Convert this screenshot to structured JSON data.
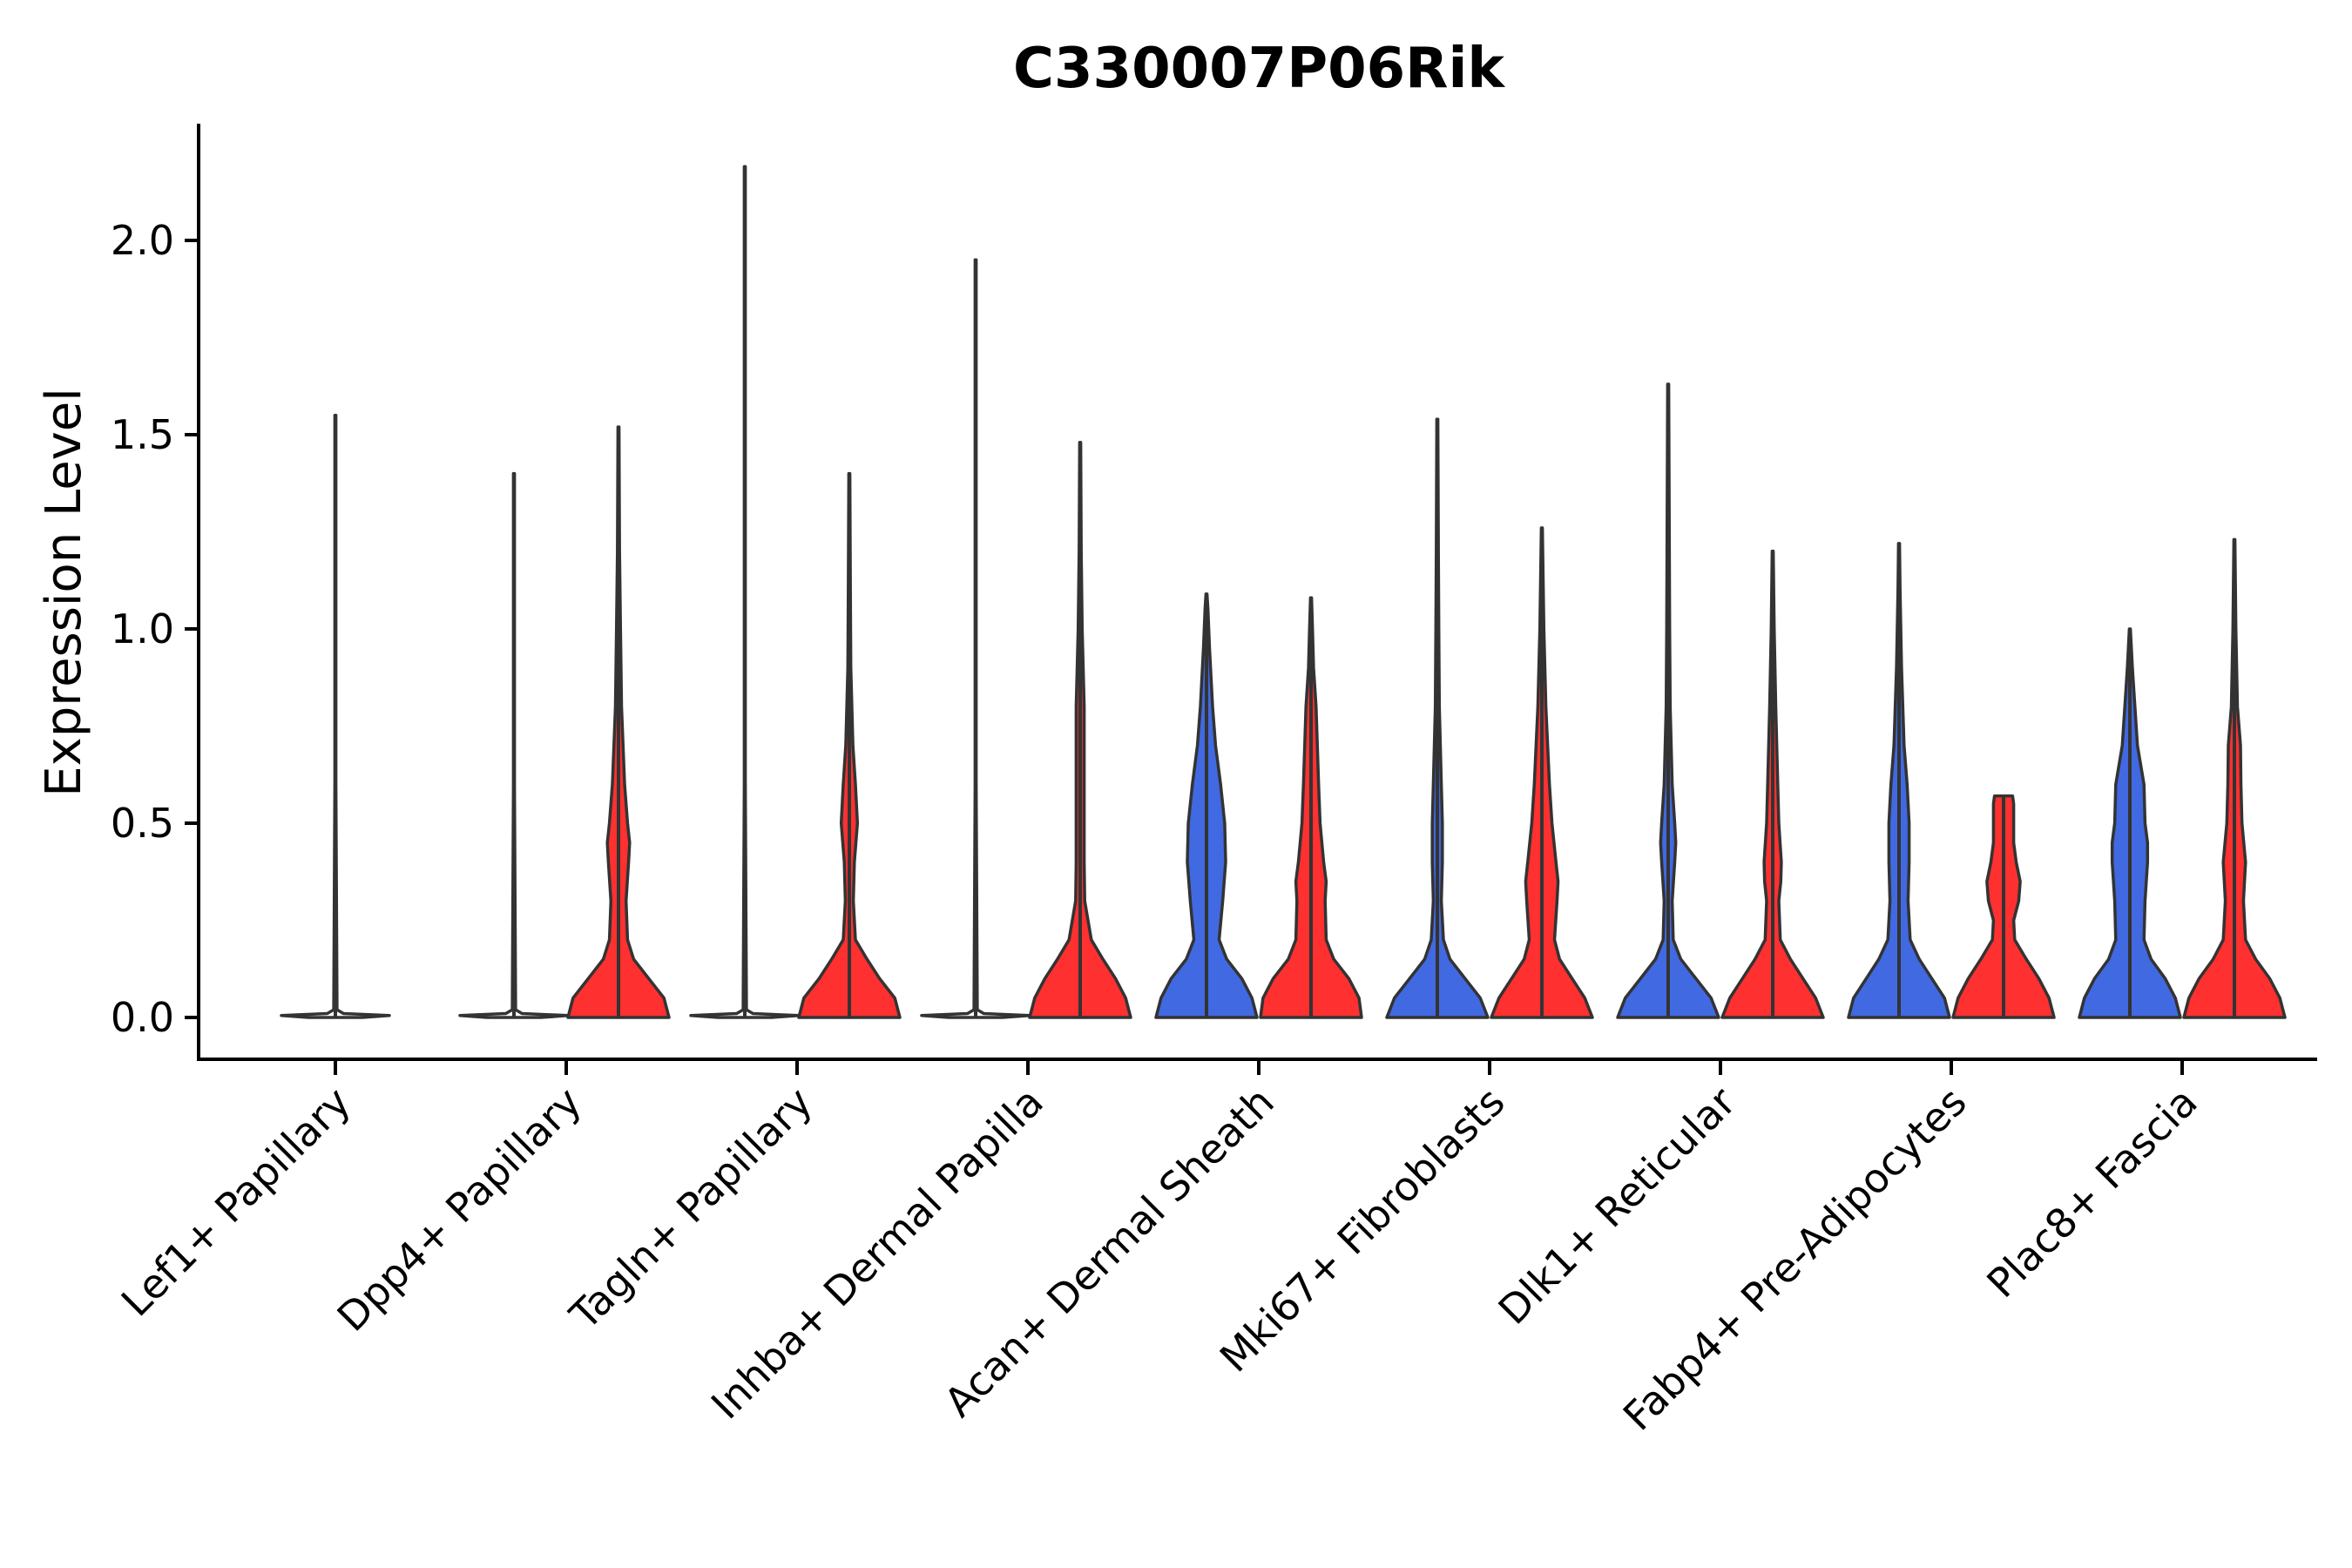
{
  "chart_data": {
    "type": "violin",
    "title": "C330007P06Rik",
    "xlabel": "",
    "ylabel": "Expression Level",
    "ylim": [
      -0.11,
      2.3
    ],
    "yticks": [
      0.0,
      0.5,
      1.0,
      1.5,
      2.0
    ],
    "ytick_labels": [
      "0.0",
      "0.5",
      "1.0",
      "1.5",
      "2.0"
    ],
    "colors": {
      "blue": "#4169E1",
      "red": "#FF3030",
      "none": "#FFFFFF"
    },
    "categories": [
      {
        "label": "Lef1+ Papillary",
        "violins": [
          {
            "group": "none",
            "max": 1.55,
            "profile": [
              [
                0,
                0.5
              ],
              [
                0.005,
                1
              ],
              [
                0.01,
                0.15
              ],
              [
                0.02,
                0.03
              ],
              [
                0.6,
                0.01
              ],
              [
                0.8,
                0.01
              ],
              [
                1.0,
                0.01
              ],
              [
                1.55,
                0.01
              ]
            ]
          }
        ]
      },
      {
        "label": "Dpp4+ Papillary",
        "violins": [
          {
            "group": "none",
            "max": 1.4,
            "profile": [
              [
                0,
                0.5
              ],
              [
                0.005,
                1
              ],
              [
                0.01,
                0.15
              ],
              [
                0.02,
                0.03
              ],
              [
                0.6,
                0.01
              ],
              [
                1.0,
                0.01
              ],
              [
                1.4,
                0.01
              ]
            ]
          },
          {
            "group": "red",
            "max": 1.52,
            "profile": [
              [
                0,
                1
              ],
              [
                0.05,
                0.9
              ],
              [
                0.1,
                0.6
              ],
              [
                0.15,
                0.3
              ],
              [
                0.2,
                0.18
              ],
              [
                0.3,
                0.15
              ],
              [
                0.4,
                0.2
              ],
              [
                0.45,
                0.22
              ],
              [
                0.5,
                0.18
              ],
              [
                0.6,
                0.12
              ],
              [
                0.8,
                0.06
              ],
              [
                1.0,
                0.04
              ],
              [
                1.2,
                0.02
              ],
              [
                1.52,
                0.01
              ]
            ]
          }
        ]
      },
      {
        "label": "Tagln+ Papillary",
        "violins": [
          {
            "group": "none",
            "max": 2.19,
            "profile": [
              [
                0,
                0.5
              ],
              [
                0.005,
                1
              ],
              [
                0.01,
                0.15
              ],
              [
                0.02,
                0.03
              ],
              [
                0.6,
                0.01
              ],
              [
                1.2,
                0.01
              ],
              [
                2.19,
                0.01
              ]
            ]
          },
          {
            "group": "red",
            "max": 1.4,
            "profile": [
              [
                0,
                1
              ],
              [
                0.05,
                0.9
              ],
              [
                0.1,
                0.6
              ],
              [
                0.15,
                0.35
              ],
              [
                0.2,
                0.12
              ],
              [
                0.3,
                0.08
              ],
              [
                0.4,
                0.1
              ],
              [
                0.5,
                0.16
              ],
              [
                0.6,
                0.12
              ],
              [
                0.7,
                0.07
              ],
              [
                0.9,
                0.03
              ],
              [
                1.1,
                0.02
              ],
              [
                1.4,
                0.01
              ]
            ]
          }
        ]
      },
      {
        "label": "Inhba+ Dermal Papilla",
        "violins": [
          {
            "group": "none",
            "max": 1.95,
            "profile": [
              [
                0,
                0.5
              ],
              [
                0.005,
                1
              ],
              [
                0.01,
                0.15
              ],
              [
                0.02,
                0.03
              ],
              [
                0.6,
                0.01
              ],
              [
                1.2,
                0.01
              ],
              [
                1.95,
                0.01
              ]
            ]
          },
          {
            "group": "red",
            "max": 1.48,
            "profile": [
              [
                0,
                1
              ],
              [
                0.05,
                0.9
              ],
              [
                0.1,
                0.7
              ],
              [
                0.15,
                0.45
              ],
              [
                0.2,
                0.22
              ],
              [
                0.3,
                0.09
              ],
              [
                0.4,
                0.08
              ],
              [
                0.6,
                0.08
              ],
              [
                0.8,
                0.08
              ],
              [
                1.0,
                0.04
              ],
              [
                1.2,
                0.02
              ],
              [
                1.48,
                0.01
              ]
            ]
          }
        ]
      },
      {
        "label": "Acan+ Dermal Sheath",
        "violins": [
          {
            "group": "blue",
            "max": 1.09,
            "profile": [
              [
                0,
                1
              ],
              [
                0.05,
                0.9
              ],
              [
                0.1,
                0.7
              ],
              [
                0.15,
                0.4
              ],
              [
                0.2,
                0.25
              ],
              [
                0.3,
                0.32
              ],
              [
                0.4,
                0.38
              ],
              [
                0.5,
                0.36
              ],
              [
                0.6,
                0.28
              ],
              [
                0.7,
                0.18
              ],
              [
                0.8,
                0.12
              ],
              [
                0.95,
                0.06
              ],
              [
                1.05,
                0.03
              ],
              [
                1.09,
                0.01
              ]
            ]
          },
          {
            "group": "red",
            "max": 1.08,
            "profile": [
              [
                0,
                1
              ],
              [
                0.05,
                0.95
              ],
              [
                0.1,
                0.75
              ],
              [
                0.15,
                0.45
              ],
              [
                0.2,
                0.3
              ],
              [
                0.3,
                0.28
              ],
              [
                0.35,
                0.3
              ],
              [
                0.4,
                0.25
              ],
              [
                0.5,
                0.18
              ],
              [
                0.6,
                0.15
              ],
              [
                0.8,
                0.1
              ],
              [
                0.9,
                0.05
              ],
              [
                1.0,
                0.03
              ],
              [
                1.08,
                0.01
              ]
            ]
          }
        ]
      },
      {
        "label": "Mki67+ Fibroblasts",
        "violins": [
          {
            "group": "blue",
            "max": 1.54,
            "profile": [
              [
                0,
                1
              ],
              [
                0.05,
                0.85
              ],
              [
                0.1,
                0.55
              ],
              [
                0.15,
                0.25
              ],
              [
                0.2,
                0.12
              ],
              [
                0.3,
                0.08
              ],
              [
                0.4,
                0.1
              ],
              [
                0.5,
                0.1
              ],
              [
                0.6,
                0.08
              ],
              [
                0.8,
                0.04
              ],
              [
                1.0,
                0.03
              ],
              [
                1.2,
                0.02
              ],
              [
                1.54,
                0.01
              ]
            ]
          },
          {
            "group": "red",
            "max": 1.26,
            "profile": [
              [
                0,
                1
              ],
              [
                0.05,
                0.85
              ],
              [
                0.1,
                0.6
              ],
              [
                0.15,
                0.35
              ],
              [
                0.2,
                0.25
              ],
              [
                0.3,
                0.3
              ],
              [
                0.35,
                0.32
              ],
              [
                0.4,
                0.28
              ],
              [
                0.5,
                0.2
              ],
              [
                0.6,
                0.15
              ],
              [
                0.8,
                0.08
              ],
              [
                1.0,
                0.04
              ],
              [
                1.26,
                0.01
              ]
            ]
          }
        ]
      },
      {
        "label": "Dlk1+ Reticular",
        "violins": [
          {
            "group": "blue",
            "max": 1.63,
            "profile": [
              [
                0,
                1
              ],
              [
                0.05,
                0.85
              ],
              [
                0.1,
                0.55
              ],
              [
                0.15,
                0.25
              ],
              [
                0.2,
                0.1
              ],
              [
                0.3,
                0.08
              ],
              [
                0.4,
                0.13
              ],
              [
                0.45,
                0.15
              ],
              [
                0.5,
                0.13
              ],
              [
                0.6,
                0.08
              ],
              [
                0.8,
                0.04
              ],
              [
                1.0,
                0.03
              ],
              [
                1.63,
                0.01
              ]
            ]
          },
          {
            "group": "red",
            "max": 1.2,
            "profile": [
              [
                0,
                1
              ],
              [
                0.05,
                0.85
              ],
              [
                0.1,
                0.6
              ],
              [
                0.15,
                0.35
              ],
              [
                0.2,
                0.15
              ],
              [
                0.3,
                0.12
              ],
              [
                0.35,
                0.16
              ],
              [
                0.4,
                0.17
              ],
              [
                0.5,
                0.12
              ],
              [
                0.6,
                0.1
              ],
              [
                0.8,
                0.06
              ],
              [
                1.0,
                0.03
              ],
              [
                1.2,
                0.01
              ]
            ]
          }
        ]
      },
      {
        "label": "Fabp4+ Pre-Adipocytes",
        "violins": [
          {
            "group": "blue",
            "max": 1.22,
            "profile": [
              [
                0,
                1
              ],
              [
                0.05,
                0.9
              ],
              [
                0.1,
                0.65
              ],
              [
                0.15,
                0.4
              ],
              [
                0.2,
                0.22
              ],
              [
                0.3,
                0.18
              ],
              [
                0.4,
                0.2
              ],
              [
                0.5,
                0.2
              ],
              [
                0.6,
                0.16
              ],
              [
                0.7,
                0.1
              ],
              [
                0.9,
                0.05
              ],
              [
                1.1,
                0.02
              ],
              [
                1.22,
                0.01
              ]
            ]
          },
          {
            "group": "red",
            "max": 0.57,
            "profile": [
              [
                0,
                1
              ],
              [
                0.05,
                0.9
              ],
              [
                0.1,
                0.7
              ],
              [
                0.15,
                0.45
              ],
              [
                0.2,
                0.22
              ],
              [
                0.25,
                0.2
              ],
              [
                0.3,
                0.3
              ],
              [
                0.35,
                0.33
              ],
              [
                0.4,
                0.25
              ],
              [
                0.45,
                0.2
              ],
              [
                0.5,
                0.2
              ],
              [
                0.55,
                0.2
              ],
              [
                0.57,
                0.18
              ]
            ]
          }
        ]
      },
      {
        "label": "Plac8+ Fascia",
        "violins": [
          {
            "group": "blue",
            "max": 1.0,
            "profile": [
              [
                0,
                1
              ],
              [
                0.05,
                0.9
              ],
              [
                0.1,
                0.7
              ],
              [
                0.15,
                0.42
              ],
              [
                0.2,
                0.28
              ],
              [
                0.3,
                0.3
              ],
              [
                0.4,
                0.35
              ],
              [
                0.45,
                0.35
              ],
              [
                0.5,
                0.3
              ],
              [
                0.6,
                0.28
              ],
              [
                0.7,
                0.15
              ],
              [
                0.8,
                0.1
              ],
              [
                0.9,
                0.05
              ],
              [
                1.0,
                0.01
              ]
            ]
          },
          {
            "group": "red",
            "max": 1.23,
            "profile": [
              [
                0,
                1
              ],
              [
                0.05,
                0.9
              ],
              [
                0.1,
                0.7
              ],
              [
                0.15,
                0.42
              ],
              [
                0.2,
                0.22
              ],
              [
                0.3,
                0.18
              ],
              [
                0.35,
                0.2
              ],
              [
                0.4,
                0.22
              ],
              [
                0.5,
                0.15
              ],
              [
                0.6,
                0.13
              ],
              [
                0.7,
                0.12
              ],
              [
                0.8,
                0.06
              ],
              [
                1.0,
                0.03
              ],
              [
                1.23,
                0.01
              ]
            ]
          }
        ]
      }
    ]
  }
}
